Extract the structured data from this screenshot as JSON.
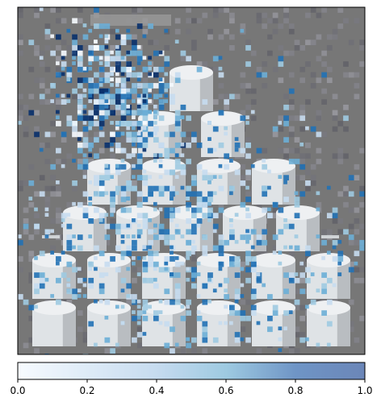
{
  "chart_data": {
    "type": "heatmap",
    "title": "",
    "xlabel": "",
    "ylabel": "",
    "show_axes": false,
    "image_grid_size": [
      64,
      64
    ],
    "image_description_hidden": true,
    "background_gray": "#777777",
    "cube_light": "#dfe3e6",
    "cube_shadow": "#b9bdc1",
    "overlay_cmap": [
      "#f6fbff",
      "#c6dbef",
      "#9ecae1",
      "#6baed6",
      "#2171b5",
      "#08306b"
    ],
    "colorbar": {
      "orientation": "horizontal",
      "vmin": 0.0,
      "vmax": 1.0,
      "ticks": [
        0.0,
        0.2,
        0.4,
        0.6,
        0.8,
        1.0
      ],
      "tick_labels": [
        "0.0",
        "0.2",
        "0.4",
        "0.6",
        "0.8",
        "1.0"
      ],
      "colors": [
        "#f7fbff",
        "#deebf7",
        "#c6dbef",
        "#9ecae1",
        "#6f95c6",
        "#6b86b8"
      ]
    },
    "pyramid_rows": [
      1,
      2,
      4,
      5,
      6,
      6
    ]
  }
}
